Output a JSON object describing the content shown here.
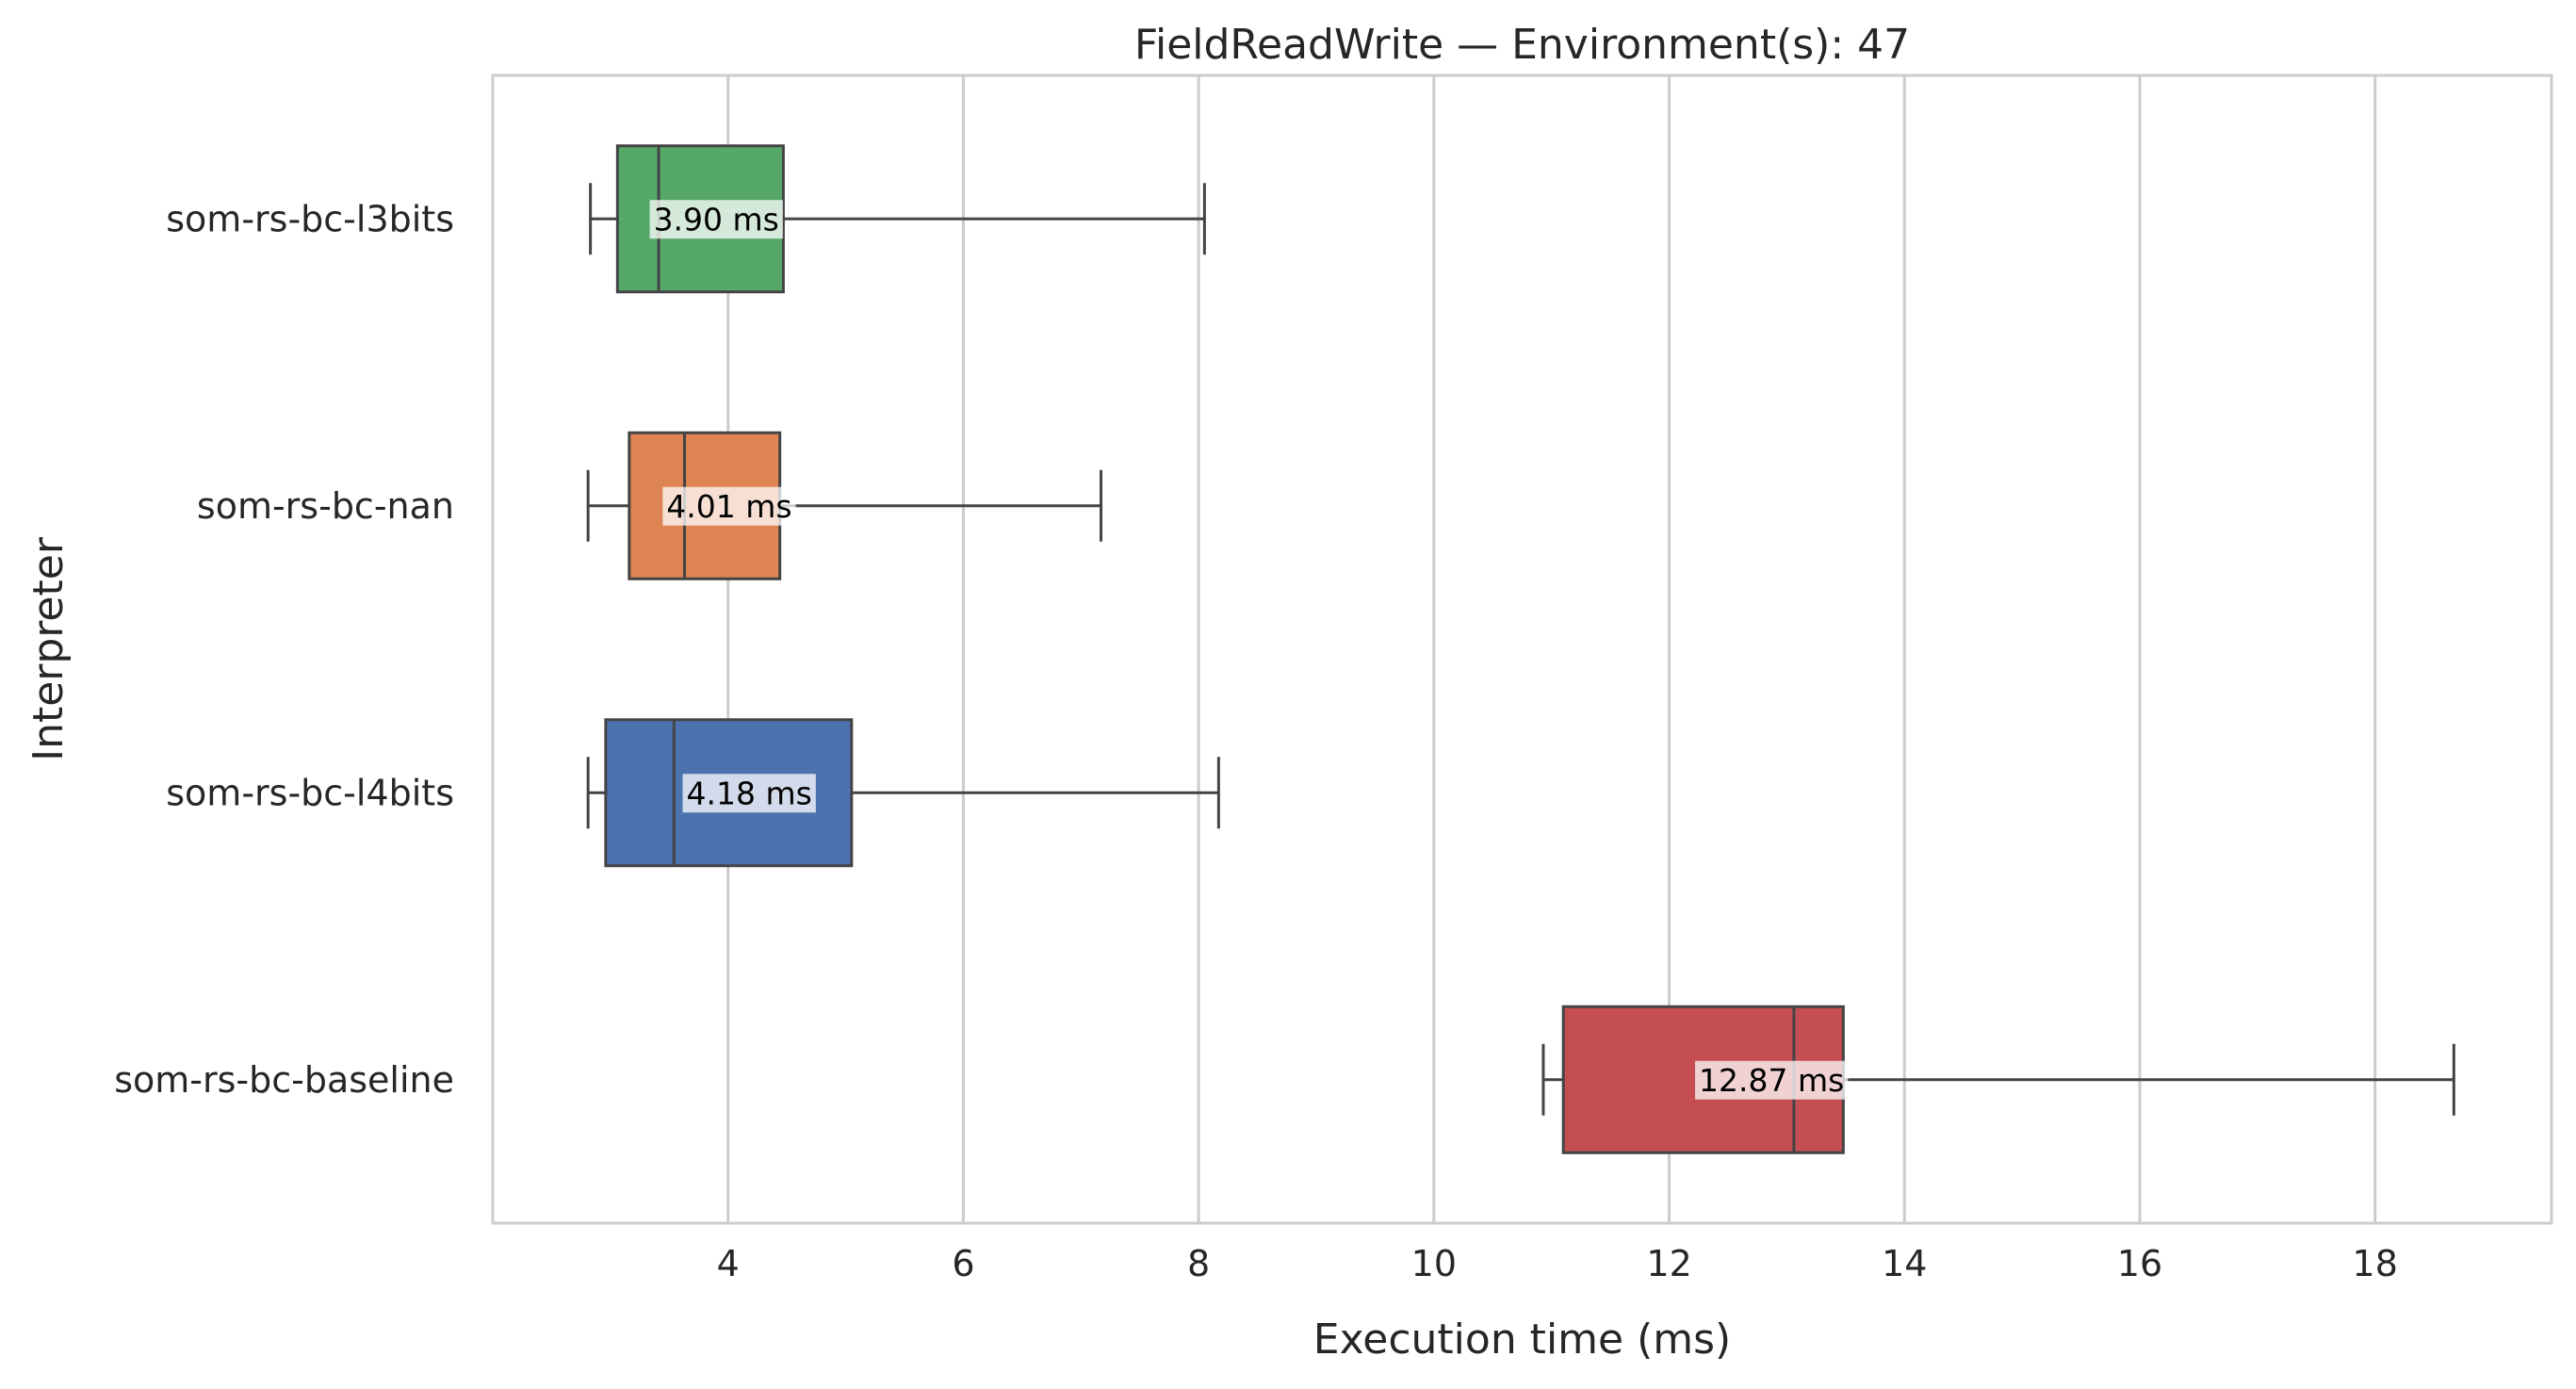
{
  "chart_data": {
    "type": "box",
    "orientation": "horizontal",
    "title": "FieldReadWrite — Environment(s): 47",
    "xlabel": "Execution time (ms)",
    "ylabel": "Interpreter",
    "xlim": [
      2.0,
      19.5
    ],
    "xticks": [
      4,
      6,
      8,
      10,
      12,
      14,
      16,
      18
    ],
    "grid": "vertical",
    "categories": [
      "som-rs-bc-l3bits",
      "som-rs-bc-nan",
      "som-rs-bc-l4bits",
      "som-rs-bc-baseline"
    ],
    "series": [
      {
        "category": "som-rs-bc-l3bits",
        "color": "#55a868",
        "whisker_low": 2.83,
        "q1": 3.06,
        "median": 3.41,
        "q3": 4.47,
        "whisker_high": 8.05,
        "mean_label": "3.90 ms",
        "mean": 3.9
      },
      {
        "category": "som-rs-bc-nan",
        "color": "#dd8452",
        "whisker_low": 2.81,
        "q1": 3.16,
        "median": 3.63,
        "q3": 4.44,
        "whisker_high": 7.17,
        "mean_label": "4.01 ms",
        "mean": 4.01
      },
      {
        "category": "som-rs-bc-l4bits",
        "color": "#4c72b0",
        "whisker_low": 2.81,
        "q1": 2.96,
        "median": 3.54,
        "q3": 5.05,
        "whisker_high": 8.17,
        "mean_label": "4.18 ms",
        "mean": 4.18
      },
      {
        "category": "som-rs-bc-baseline",
        "color": "#c44e52",
        "whisker_low": 10.93,
        "q1": 11.1,
        "median": 13.06,
        "q3": 13.48,
        "whisker_high": 18.67,
        "mean_label": "12.87 ms",
        "mean": 12.87
      }
    ]
  }
}
